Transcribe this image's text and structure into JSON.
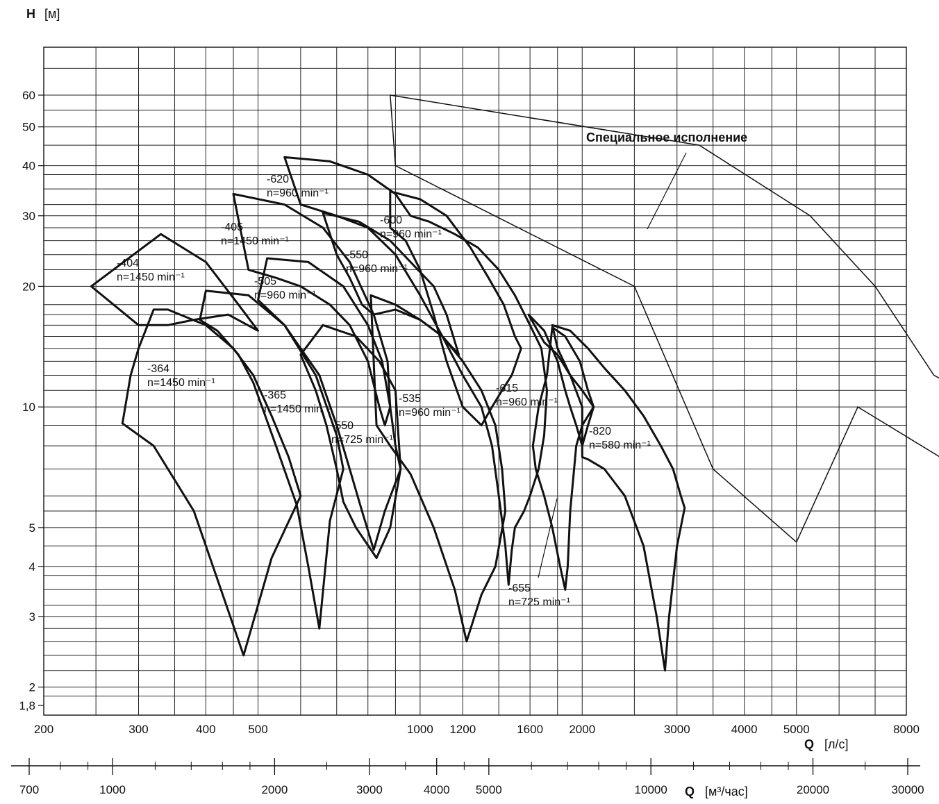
{
  "chart_data": {
    "type": "line",
    "title": "",
    "ylabel_symbol": "H",
    "ylabel_unit": "[м]",
    "xlabel_symbol": "Q",
    "xlabel_unit": "[л/с]",
    "x2label_symbol": "Q",
    "x2label_unit": "[м³/час]",
    "x_scale": "log",
    "y_scale": "log",
    "xlim": [
      200,
      8000
    ],
    "ylim": [
      1.8,
      80
    ],
    "grid": true,
    "y_ticks": [
      {
        "v": 60,
        "t": "60"
      },
      {
        "v": 50,
        "t": "50"
      },
      {
        "v": 40,
        "t": "40"
      },
      {
        "v": 30,
        "t": "30"
      },
      {
        "v": 20,
        "t": "20"
      },
      {
        "v": 10,
        "t": "10"
      },
      {
        "v": 5,
        "t": "5"
      },
      {
        "v": 4,
        "t": "4"
      },
      {
        "v": 3,
        "t": "3"
      },
      {
        "v": 2,
        "t": "2"
      },
      {
        "v": 1.8,
        "t": "1,8"
      }
    ],
    "x_ticks": [
      {
        "v": 200,
        "t": "200"
      },
      {
        "v": 300,
        "t": "300"
      },
      {
        "v": 400,
        "t": "400"
      },
      {
        "v": 500,
        "t": "500"
      },
      {
        "v": 1000,
        "t": "1000"
      },
      {
        "v": 1200,
        "t": "1200"
      },
      {
        "v": 1600,
        "t": "1600"
      },
      {
        "v": 2000,
        "t": "2000"
      },
      {
        "v": 3000,
        "t": "3000"
      },
      {
        "v": 4000,
        "t": "4000"
      },
      {
        "v": 5000,
        "t": "5000"
      },
      {
        "v": 8000,
        "t": "8000"
      }
    ],
    "x2_ticks": [
      {
        "v": 700,
        "t": "700"
      },
      {
        "v": 1000,
        "t": "1000"
      },
      {
        "v": 2000,
        "t": "2000"
      },
      {
        "v": 3000,
        "t": "3000"
      },
      {
        "v": 4000,
        "t": "4000"
      },
      {
        "v": 5000,
        "t": "5000"
      },
      {
        "v": 10000,
        "t": "10000"
      },
      {
        "v": 20000,
        "t": "20000"
      },
      {
        "v": 30000,
        "t": "30000"
      }
    ],
    "special_label": "Специальное исполнение",
    "special_region": [
      [
        880,
        60
      ],
      [
        3300,
        45
      ],
      [
        5300,
        30
      ],
      [
        7000,
        20
      ],
      [
        9000,
        12
      ],
      [
        11500,
        10
      ],
      [
        11000,
        6.5
      ],
      [
        6500,
        10
      ],
      [
        5000,
        4.6
      ],
      [
        3500,
        7
      ],
      [
        2500,
        20
      ],
      [
        900,
        40
      ]
    ],
    "series": [
      {
        "name": "-364",
        "speed": "n=1450 min⁻¹",
        "bold": true,
        "points": [
          [
            340,
            17.5
          ],
          [
            400,
            16
          ],
          [
            450,
            14
          ],
          [
            490,
            12
          ],
          [
            530,
            9.5
          ],
          [
            570,
            7.5
          ],
          [
            600,
            6
          ],
          [
            530,
            4.2
          ],
          [
            470,
            2.4
          ],
          [
            430,
            3.4
          ],
          [
            380,
            5.5
          ],
          [
            320,
            8
          ],
          [
            280,
            9.1
          ],
          [
            290,
            12
          ],
          [
            300,
            14
          ],
          [
            320,
            17.5
          ]
        ]
      },
      {
        "name": "-365",
        "speed": "n=1450 min⁻¹",
        "bold": true,
        "points": [
          [
            400,
            19.5
          ],
          [
            480,
            19
          ],
          [
            560,
            16
          ],
          [
            640,
            12
          ],
          [
            700,
            8.5
          ],
          [
            720,
            7
          ],
          [
            680,
            5.2
          ],
          [
            650,
            2.8
          ],
          [
            620,
            4
          ],
          [
            590,
            5.7
          ],
          [
            540,
            8
          ],
          [
            490,
            11.5
          ],
          [
            460,
            13.5
          ],
          [
            420,
            15.5
          ],
          [
            390,
            16.5
          ],
          [
            400,
            19.5
          ]
        ]
      },
      {
        "name": "-404",
        "speed": "n=1450 min⁻¹",
        "bold": true,
        "points": [
          [
            245,
            20
          ],
          [
            330,
            27
          ],
          [
            400,
            23
          ],
          [
            460,
            18
          ],
          [
            500,
            15.5
          ],
          [
            440,
            17
          ],
          [
            380,
            16.5
          ],
          [
            340,
            16
          ],
          [
            300,
            16
          ],
          [
            245,
            20
          ]
        ]
      },
      {
        "name": "-405",
        "speed": "n=1450 min⁻¹",
        "bold": true,
        "points": [
          [
            450,
            34
          ],
          [
            560,
            32
          ],
          [
            660,
            28
          ],
          [
            740,
            23
          ],
          [
            820,
            17
          ],
          [
            870,
            13
          ],
          [
            880,
            10
          ],
          [
            860,
            9
          ],
          [
            840,
            10
          ],
          [
            800,
            13
          ],
          [
            740,
            16
          ],
          [
            680,
            18
          ],
          [
            600,
            20
          ],
          [
            540,
            21
          ],
          [
            480,
            22
          ],
          [
            450,
            34
          ]
        ]
      },
      {
        "name": "-505",
        "speed": "n=960 min⁻¹",
        "bold": true,
        "points": [
          [
            520,
            23.5
          ],
          [
            620,
            23
          ],
          [
            720,
            20
          ],
          [
            800,
            16
          ],
          [
            850,
            13
          ],
          [
            880,
            10
          ],
          [
            900,
            8
          ],
          [
            920,
            7
          ],
          [
            860,
            5.5
          ],
          [
            820,
            4.4
          ],
          [
            780,
            5.5
          ],
          [
            740,
            7
          ],
          [
            700,
            9
          ],
          [
            650,
            12
          ],
          [
            600,
            14
          ],
          [
            560,
            16
          ],
          [
            500,
            18.5
          ],
          [
            520,
            23.5
          ]
        ]
      },
      {
        "name": "-550",
        "speed": "n=725 min⁻¹",
        "bold": true,
        "points": [
          [
            660,
            16
          ],
          [
            760,
            15
          ],
          [
            840,
            13
          ],
          [
            900,
            11
          ],
          [
            920,
            7
          ],
          [
            880,
            5
          ],
          [
            830,
            4.2
          ],
          [
            760,
            5
          ],
          [
            720,
            5.8
          ],
          [
            700,
            7
          ],
          [
            670,
            9
          ],
          [
            640,
            11
          ],
          [
            600,
            13.5
          ],
          [
            660,
            16
          ]
        ]
      },
      {
        "name": "-550",
        "speed": "n=960 min⁻¹",
        "bold": true,
        "points": [
          [
            660,
            30.5
          ],
          [
            770,
            29
          ],
          [
            880,
            26
          ],
          [
            960,
            23
          ],
          [
            1060,
            20
          ],
          [
            1120,
            17
          ],
          [
            1180,
            13.5
          ],
          [
            1100,
            15
          ],
          [
            1000,
            16.5
          ],
          [
            900,
            17.5
          ],
          [
            820,
            17
          ],
          [
            780,
            18
          ],
          [
            740,
            21
          ],
          [
            700,
            24
          ],
          [
            660,
            30.5
          ]
        ]
      },
      {
        "name": "-535",
        "speed": "n=960 min⁻¹",
        "bold": true,
        "points": [
          [
            810,
            19
          ],
          [
            900,
            18
          ],
          [
            1000,
            16.5
          ],
          [
            1100,
            15
          ],
          [
            1200,
            13
          ],
          [
            1300,
            11
          ],
          [
            1380,
            9
          ],
          [
            1420,
            7
          ],
          [
            1440,
            5.5
          ],
          [
            1380,
            4
          ],
          [
            1300,
            3.4
          ],
          [
            1220,
            2.6
          ],
          [
            1160,
            3.5
          ],
          [
            1060,
            5
          ],
          [
            960,
            6.8
          ],
          [
            880,
            8
          ],
          [
            830,
            9
          ],
          [
            810,
            19
          ]
        ]
      },
      {
        "name": "-600",
        "speed": "n=960 min⁻¹",
        "bold": true,
        "points": [
          [
            880,
            34.5
          ],
          [
            1000,
            33
          ],
          [
            1120,
            30
          ],
          [
            1240,
            25
          ],
          [
            1340,
            21
          ],
          [
            1430,
            18
          ],
          [
            1500,
            15
          ],
          [
            1540,
            14
          ],
          [
            1480,
            12
          ],
          [
            1420,
            11
          ],
          [
            1360,
            10
          ],
          [
            1300,
            9
          ],
          [
            1200,
            10
          ],
          [
            1120,
            13
          ],
          [
            1060,
            17
          ],
          [
            1000,
            22
          ],
          [
            940,
            26
          ],
          [
            880,
            28
          ],
          [
            880,
            34.5
          ]
        ]
      },
      {
        "name": "-615",
        "speed": "n=960 min⁻¹",
        "bold": true,
        "points": [
          [
            1590,
            17
          ],
          [
            1700,
            15.5
          ],
          [
            1800,
            13
          ],
          [
            1860,
            11
          ],
          [
            1900,
            10
          ],
          [
            1950,
            9
          ],
          [
            2000,
            8
          ],
          [
            2050,
            9
          ],
          [
            2100,
            10
          ],
          [
            2000,
            11
          ],
          [
            1900,
            12
          ],
          [
            1800,
            13.5
          ],
          [
            1700,
            14.5
          ],
          [
            1590,
            17
          ]
        ]
      },
      {
        "name": "-620",
        "speed": "n=960 min⁻¹",
        "bold": true,
        "points": [
          [
            560,
            42
          ],
          [
            680,
            41
          ],
          [
            800,
            38
          ],
          [
            900,
            34
          ],
          [
            960,
            30
          ],
          [
            1040,
            29
          ],
          [
            1160,
            27
          ],
          [
            1280,
            25
          ],
          [
            1400,
            22
          ],
          [
            1500,
            19
          ],
          [
            1600,
            16
          ],
          [
            1680,
            14
          ],
          [
            1720,
            11
          ],
          [
            1700,
            8.5
          ],
          [
            1660,
            7
          ],
          [
            1600,
            6
          ],
          [
            1560,
            5.5
          ],
          [
            1500,
            5
          ],
          [
            1480,
            4.4
          ],
          [
            1460,
            3.6
          ],
          [
            1440,
            4.5
          ],
          [
            1400,
            6
          ],
          [
            1360,
            8
          ],
          [
            1300,
            10
          ],
          [
            1200,
            12
          ],
          [
            1100,
            15
          ],
          [
            1000,
            19
          ],
          [
            900,
            24
          ],
          [
            800,
            28
          ],
          [
            700,
            30
          ],
          [
            600,
            32
          ],
          [
            560,
            42
          ]
        ]
      },
      {
        "name": "-655",
        "speed": "n=725 min⁻¹",
        "bold": true,
        "points": [
          [
            1760,
            15.8
          ],
          [
            1860,
            15
          ],
          [
            1980,
            13
          ],
          [
            2050,
            11
          ],
          [
            2100,
            10
          ],
          [
            2000,
            9
          ],
          [
            1950,
            8
          ],
          [
            1900,
            5.5
          ],
          [
            1880,
            4
          ],
          [
            1860,
            3.5
          ],
          [
            1820,
            4
          ],
          [
            1760,
            5
          ],
          [
            1700,
            6
          ],
          [
            1640,
            7
          ],
          [
            1620,
            8
          ],
          [
            1660,
            10
          ],
          [
            1720,
            12
          ],
          [
            1760,
            15.8
          ]
        ]
      },
      {
        "name": "-820",
        "speed": "n=580 min⁻¹",
        "bold": true,
        "points": [
          [
            1760,
            16
          ],
          [
            1900,
            15.5
          ],
          [
            2050,
            14
          ],
          [
            2200,
            12.5
          ],
          [
            2400,
            11
          ],
          [
            2600,
            9.5
          ],
          [
            2800,
            8
          ],
          [
            2950,
            7
          ],
          [
            3050,
            6
          ],
          [
            3100,
            5.6
          ],
          [
            3000,
            4.5
          ],
          [
            2900,
            3
          ],
          [
            2850,
            2.2
          ],
          [
            2750,
            3
          ],
          [
            2600,
            4.5
          ],
          [
            2400,
            6
          ],
          [
            2200,
            7
          ],
          [
            2050,
            7.4
          ],
          [
            2000,
            7.5
          ],
          [
            2000,
            10
          ],
          [
            1900,
            12
          ],
          [
            1800,
            14
          ],
          [
            1760,
            16
          ]
        ]
      }
    ]
  }
}
